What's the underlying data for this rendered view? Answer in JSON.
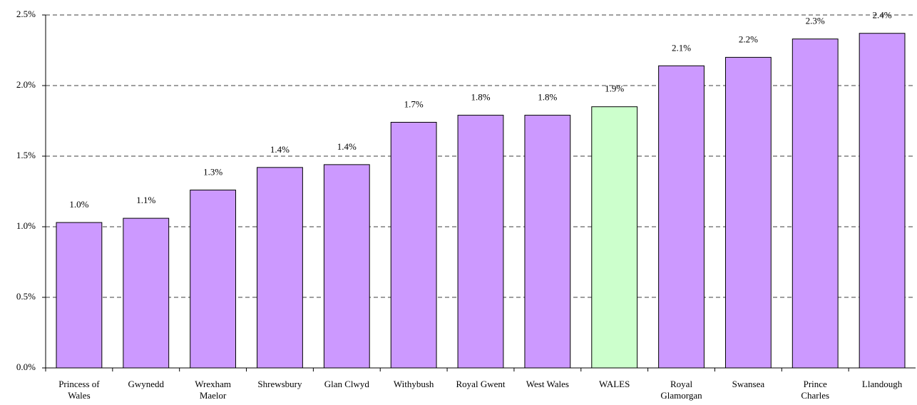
{
  "chart_data": {
    "type": "bar",
    "categories": [
      "Princess of\nWales",
      "Gwynedd",
      "Wrexham\nMaelor",
      "Shrewsbury",
      "Glan Clwyd",
      "Withybush",
      "Royal Gwent",
      "West Wales",
      "WALES",
      "Royal\nGlamorgan",
      "Swansea",
      "Prince\nCharles",
      "Llandough"
    ],
    "values": [
      1.03,
      1.06,
      1.26,
      1.42,
      1.44,
      1.74,
      1.79,
      1.79,
      1.85,
      2.14,
      2.2,
      2.33,
      2.37
    ],
    "value_labels": [
      "1.0%",
      "1.1%",
      "1.3%",
      "1.4%",
      "1.4%",
      "1.7%",
      "1.8%",
      "1.8%",
      "1.9%",
      "2.1%",
      "2.2%",
      "2.3%",
      "2.4%"
    ],
    "colors": [
      "#cc99ff",
      "#cc99ff",
      "#cc99ff",
      "#cc99ff",
      "#cc99ff",
      "#cc99ff",
      "#cc99ff",
      "#cc99ff",
      "#ccffcc",
      "#cc99ff",
      "#cc99ff",
      "#cc99ff",
      "#cc99ff"
    ],
    "ylim": [
      0,
      2.5
    ],
    "yticks": [
      {
        "value": 0,
        "label": "0.0%"
      },
      {
        "value": 0.5,
        "label": "0.5%"
      },
      {
        "value": 1,
        "label": "1.0%"
      },
      {
        "value": 1.5,
        "label": "1.5%"
      },
      {
        "value": 2,
        "label": "2.0%"
      },
      {
        "value": 2.5,
        "label": "2.5%"
      }
    ],
    "grid": true
  }
}
